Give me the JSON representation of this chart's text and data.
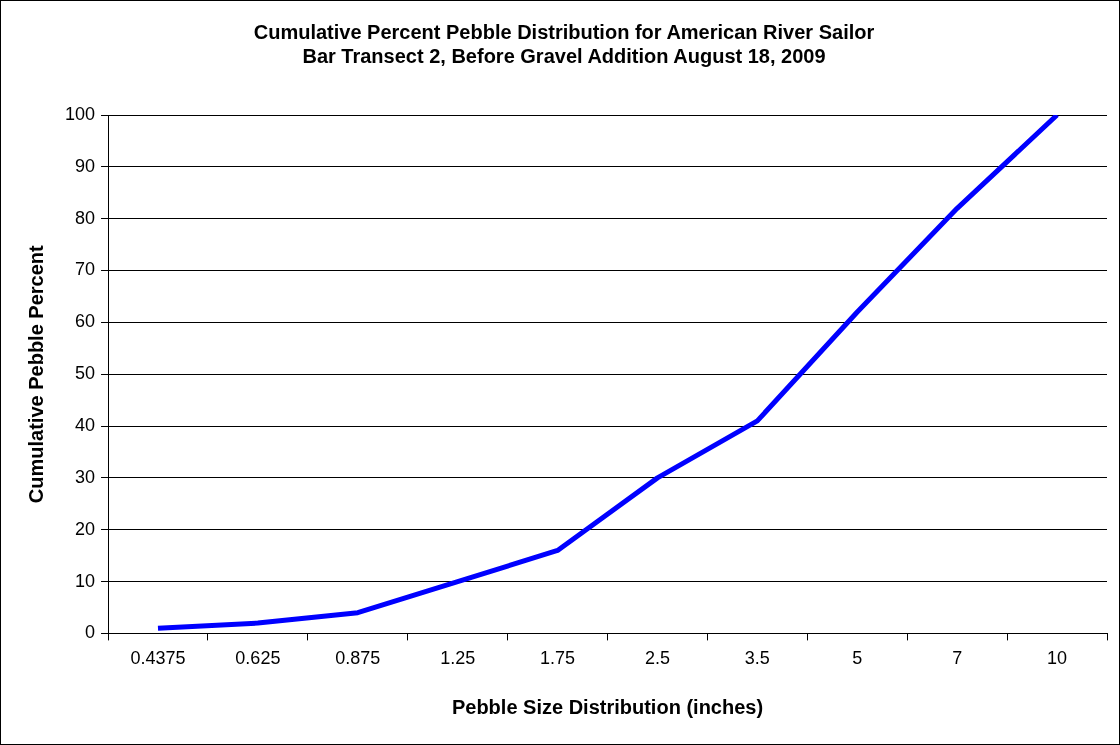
{
  "chart_data": {
    "type": "line",
    "title": [
      "Cumulative Percent Pebble Distribution for American River Sailor",
      "Bar Transect 2, Before Gravel Addition August 18, 2009"
    ],
    "xlabel": "Pebble Size Distribution (inches)",
    "ylabel": "Cumulative Pebble Percent",
    "categories": [
      "0.4375",
      "0.625",
      "0.875",
      "1.25",
      "1.75",
      "2.5",
      "3.5",
      "5",
      "7",
      "10"
    ],
    "series": [
      {
        "color": "#0000ff",
        "values": [
          1,
          2,
          4,
          10,
          16,
          30,
          41,
          62,
          82,
          100
        ]
      }
    ],
    "ylim": [
      0,
      100
    ],
    "yticks": [
      0,
      10,
      20,
      30,
      40,
      50,
      60,
      70,
      80,
      90,
      100
    ],
    "grid": "y",
    "legend": false,
    "marker": "none",
    "line_style": "solid"
  }
}
